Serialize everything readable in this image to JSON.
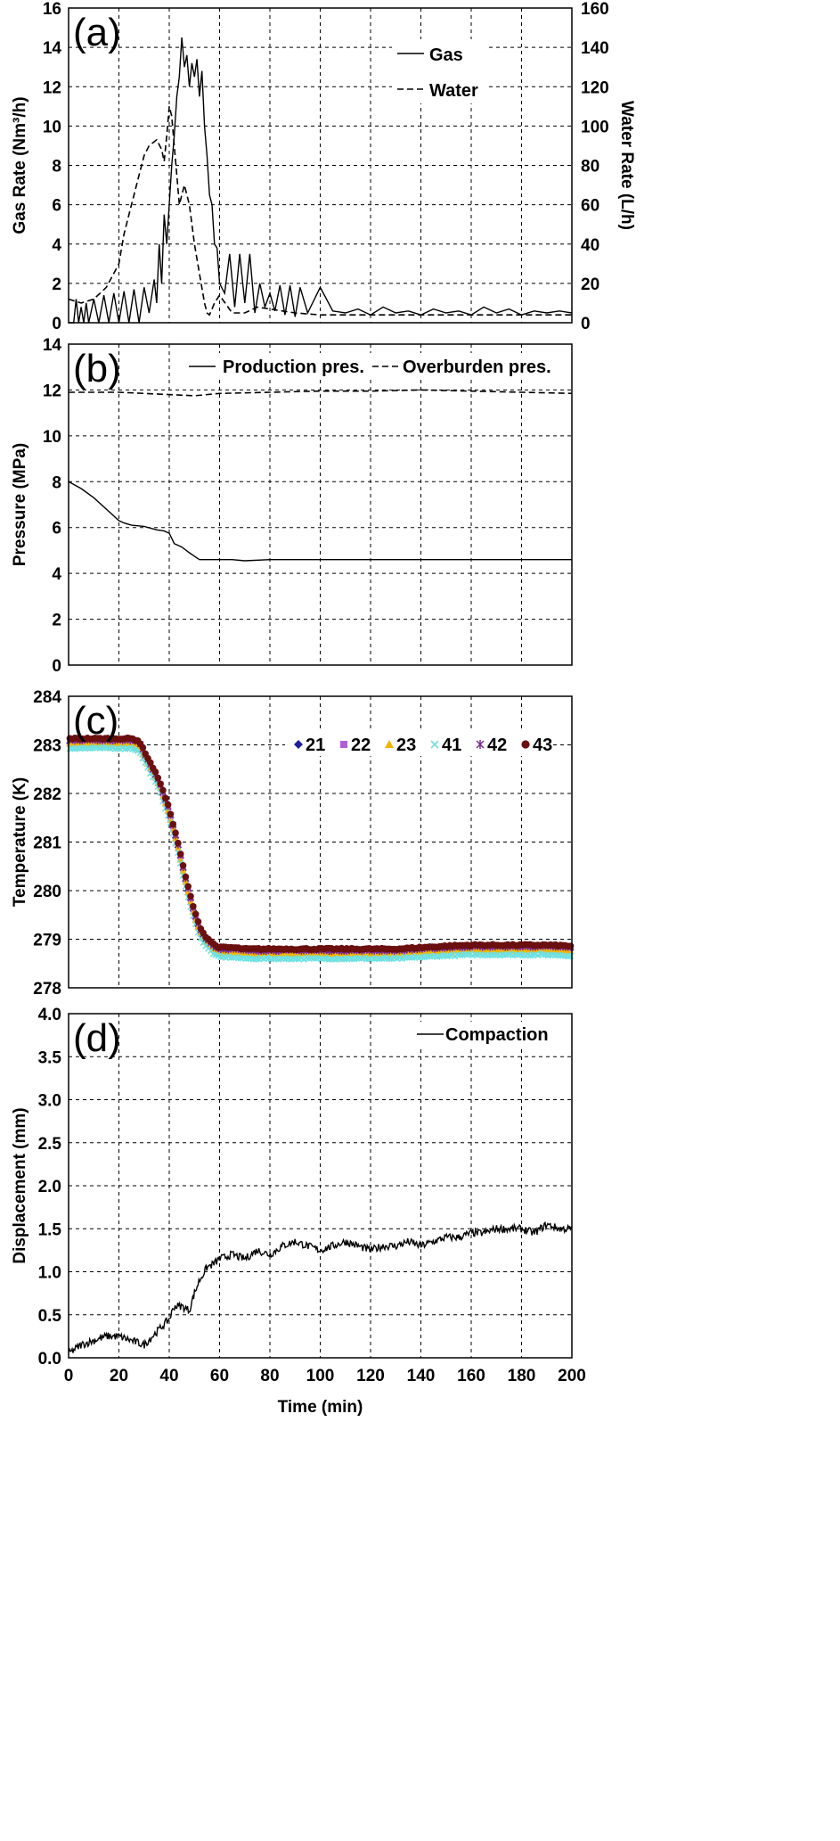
{
  "chart_data": [
    {
      "type": "line",
      "panel_label": "(a)",
      "xlim": [
        0,
        200
      ],
      "ylim": [
        0,
        16
      ],
      "y2lim": [
        0,
        160
      ],
      "x_ticks": [
        0,
        20,
        40,
        60,
        80,
        100,
        120,
        140,
        160,
        180,
        200
      ],
      "y_ticks": [
        0,
        2,
        4,
        6,
        8,
        10,
        12,
        14,
        16
      ],
      "y2_ticks": [
        0,
        20,
        40,
        60,
        80,
        100,
        120,
        140,
        160
      ],
      "ylabel": "Gas Rate (Nm³/h)",
      "y2label": "Water Rate (L/h)",
      "grid": true,
      "legend": "top-right",
      "series": [
        {
          "name": "Gas",
          "axis": "left",
          "style": "solid",
          "x": [
            0,
            2,
            3,
            4,
            5,
            6,
            7,
            8,
            10,
            12,
            14,
            16,
            18,
            20,
            22,
            24,
            26,
            28,
            30,
            32,
            34,
            35,
            36,
            37,
            38,
            39,
            40,
            41,
            42,
            43,
            44,
            45,
            46,
            47,
            48,
            49,
            50,
            51,
            52,
            53,
            54,
            55,
            56,
            57,
            58,
            59,
            60,
            62,
            64,
            66,
            68,
            70,
            72,
            74,
            76,
            78,
            80,
            82,
            84,
            86,
            88,
            90,
            92,
            95,
            100,
            105,
            110,
            115,
            120,
            125,
            130,
            135,
            140,
            145,
            150,
            155,
            160,
            165,
            170,
            175,
            180,
            185,
            190,
            195,
            200
          ],
          "y": [
            0,
            0,
            1.2,
            0,
            0.8,
            0,
            1.0,
            0,
            1.2,
            0,
            1.4,
            0,
            1.5,
            0,
            1.6,
            0,
            1.7,
            0,
            1.8,
            0.5,
            2.2,
            1.0,
            4.0,
            2.0,
            5.5,
            4.0,
            6.0,
            8.0,
            9.5,
            11.5,
            12.5,
            14.5,
            13.0,
            13.6,
            12.0,
            13.2,
            12.5,
            13.4,
            11.5,
            12.8,
            10.0,
            8.5,
            6.5,
            6.0,
            4.0,
            3.8,
            2.0,
            1.5,
            3.5,
            0.8,
            3.5,
            1.0,
            3.5,
            0.5,
            2.0,
            0.8,
            1.5,
            0.6,
            1.9,
            0.4,
            1.9,
            0.3,
            1.8,
            0.5,
            1.8,
            0.6,
            0.5,
            0.7,
            0.4,
            0.8,
            0.5,
            0.6,
            0.4,
            0.7,
            0.5,
            0.6,
            0.4,
            0.8,
            0.5,
            0.7,
            0.4,
            0.6,
            0.5,
            0.6,
            0.5
          ]
        },
        {
          "name": "Water",
          "axis": "right",
          "style": "dashed",
          "x": [
            0,
            5,
            10,
            15,
            20,
            22,
            25,
            28,
            30,
            32,
            35,
            37,
            38,
            39,
            40,
            41,
            42,
            43,
            44,
            45,
            46,
            48,
            50,
            52,
            54,
            55,
            56,
            58,
            60,
            65,
            70,
            75,
            80,
            85,
            90,
            100,
            120,
            140,
            160,
            180,
            200
          ],
          "y": [
            12,
            10,
            12,
            18,
            30,
            45,
            60,
            75,
            85,
            90,
            93,
            88,
            82,
            95,
            110,
            105,
            90,
            75,
            60,
            65,
            70,
            60,
            40,
            25,
            10,
            5,
            4,
            10,
            14,
            5,
            5,
            8,
            7,
            6,
            5,
            4,
            4,
            4,
            4,
            4,
            4
          ]
        }
      ]
    },
    {
      "type": "line",
      "panel_label": "(b)",
      "xlim": [
        0,
        200
      ],
      "ylim": [
        0,
        14
      ],
      "x_ticks": [
        0,
        20,
        40,
        60,
        80,
        100,
        120,
        140,
        160,
        180,
        200
      ],
      "y_ticks": [
        0,
        2,
        4,
        6,
        8,
        10,
        12,
        14
      ],
      "ylabel": "Pressure (MPa)",
      "grid": true,
      "legend": "top",
      "series": [
        {
          "name": "Production pres.",
          "style": "solid",
          "x": [
            0,
            5,
            10,
            15,
            20,
            22,
            25,
            30,
            35,
            38,
            40,
            42,
            45,
            48,
            50,
            52,
            55,
            60,
            65,
            70,
            80,
            100,
            120,
            140,
            160,
            180,
            200
          ],
          "y": [
            8.0,
            7.7,
            7.3,
            6.8,
            6.3,
            6.2,
            6.1,
            6.05,
            5.9,
            5.85,
            5.75,
            5.3,
            5.15,
            4.9,
            4.75,
            4.6,
            4.6,
            4.6,
            4.6,
            4.55,
            4.6,
            4.6,
            4.6,
            4.6,
            4.6,
            4.6,
            4.6
          ]
        },
        {
          "name": "Overburden pres.",
          "style": "dashed",
          "x": [
            0,
            20,
            30,
            40,
            50,
            60,
            80,
            100,
            120,
            140,
            160,
            180,
            200
          ],
          "y": [
            11.9,
            11.9,
            11.85,
            11.8,
            11.75,
            11.85,
            11.9,
            11.95,
            11.95,
            12.0,
            11.95,
            11.9,
            11.85
          ]
        }
      ]
    },
    {
      "type": "scatter",
      "panel_label": "(c)",
      "xlim": [
        0,
        200
      ],
      "ylim": [
        278,
        284
      ],
      "x_ticks": [
        0,
        20,
        40,
        60,
        80,
        100,
        120,
        140,
        160,
        180,
        200
      ],
      "y_ticks": [
        278,
        279,
        280,
        281,
        282,
        283,
        284
      ],
      "ylabel": "Temperature (K)",
      "grid": true,
      "legend": "top-right",
      "series": [
        {
          "name": "21",
          "color": "#1f1f9c",
          "marker": "diamond",
          "offset": 0.0
        },
        {
          "name": "22",
          "color": "#b05fd6",
          "marker": "square",
          "offset": 0.03
        },
        {
          "name": "23",
          "color": "#f2b500",
          "marker": "triangle",
          "offset": -0.03
        },
        {
          "name": "41",
          "color": "#6fe0e0",
          "marker": "x",
          "offset": -0.12
        },
        {
          "name": "42",
          "color": "#7b2a8f",
          "marker": "star",
          "offset": 0.05
        },
        {
          "name": "43",
          "color": "#6b0f0f",
          "marker": "circle",
          "offset": 0.08
        }
      ],
      "profile_x": [
        0,
        5,
        10,
        15,
        20,
        25,
        28,
        30,
        32,
        34,
        36,
        38,
        40,
        42,
        44,
        46,
        48,
        50,
        52,
        54,
        56,
        58,
        60,
        65,
        70,
        80,
        90,
        100,
        110,
        120,
        130,
        140,
        150,
        160,
        170,
        180,
        190,
        200
      ],
      "profile_y": [
        283.05,
        283.05,
        283.05,
        283.05,
        283.05,
        283.05,
        283.0,
        282.8,
        282.6,
        282.4,
        282.2,
        281.9,
        281.6,
        281.2,
        280.8,
        280.3,
        279.9,
        279.5,
        279.2,
        279.0,
        278.9,
        278.8,
        278.75,
        278.75,
        278.72,
        278.72,
        278.72,
        278.72,
        278.72,
        278.72,
        278.72,
        278.75,
        278.78,
        278.8,
        278.8,
        278.8,
        278.8,
        278.78
      ]
    },
    {
      "type": "line",
      "panel_label": "(d)",
      "xlim": [
        0,
        200
      ],
      "ylim": [
        0,
        4.0
      ],
      "x_ticks": [
        0,
        20,
        40,
        60,
        80,
        100,
        120,
        140,
        160,
        180,
        200
      ],
      "y_ticks": [
        0.0,
        0.5,
        1.0,
        1.5,
        2.0,
        2.5,
        3.0,
        3.5,
        4.0
      ],
      "ylabel": "Displacement (mm)",
      "xlabel": "Time (min)",
      "grid": true,
      "legend": "top-right",
      "series": [
        {
          "name": "Compaction",
          "style": "solid",
          "x": [
            0,
            5,
            10,
            15,
            20,
            25,
            30,
            35,
            40,
            42,
            45,
            48,
            50,
            52,
            55,
            58,
            60,
            65,
            70,
            75,
            80,
            85,
            90,
            95,
            100,
            105,
            110,
            115,
            120,
            125,
            130,
            135,
            140,
            145,
            150,
            155,
            160,
            165,
            170,
            175,
            180,
            185,
            190,
            195,
            200
          ],
          "y": [
            0.05,
            0.15,
            0.2,
            0.25,
            0.25,
            0.2,
            0.15,
            0.3,
            0.45,
            0.6,
            0.6,
            0.55,
            0.75,
            0.9,
            1.05,
            1.1,
            1.15,
            1.2,
            1.15,
            1.25,
            1.2,
            1.3,
            1.35,
            1.3,
            1.25,
            1.3,
            1.35,
            1.3,
            1.25,
            1.3,
            1.3,
            1.35,
            1.3,
            1.35,
            1.4,
            1.4,
            1.45,
            1.45,
            1.5,
            1.5,
            1.5,
            1.45,
            1.55,
            1.5,
            1.5
          ]
        }
      ]
    }
  ]
}
